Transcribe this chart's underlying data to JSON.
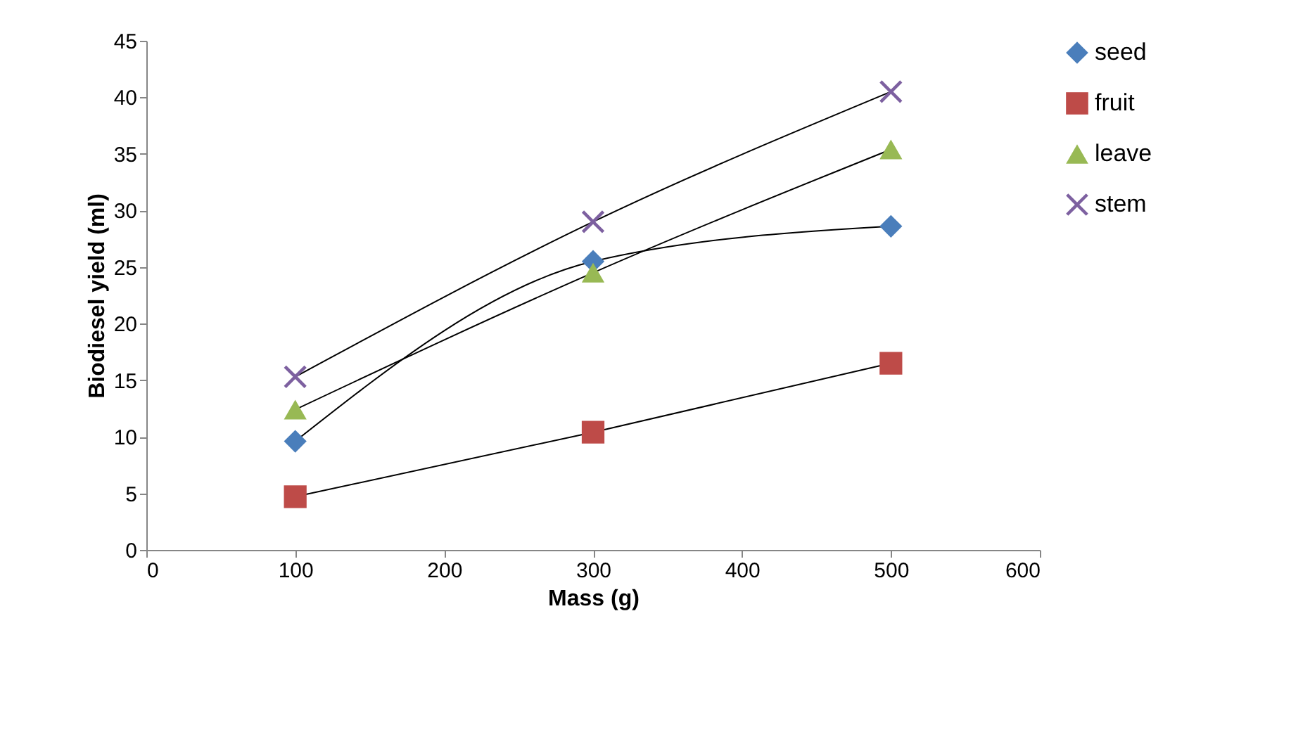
{
  "chart_data": {
    "type": "line",
    "xlabel": "Mass (g)",
    "ylabel": "Biodiesel yield (ml)",
    "x": [
      100,
      300,
      500
    ],
    "series": [
      {
        "name": "seed",
        "color": "#4a7ebb",
        "marker": "diamond",
        "values": [
          9.6,
          25.5,
          28.6
        ]
      },
      {
        "name": "fruit",
        "color": "#be4b48",
        "marker": "square",
        "values": [
          4.7,
          10.4,
          16.5
        ]
      },
      {
        "name": "leave",
        "color": "#98b954",
        "marker": "triangle",
        "values": [
          12.4,
          24.5,
          35.4
        ]
      },
      {
        "name": "stem",
        "color": "#7d60a0",
        "marker": "cross",
        "values": [
          15.3,
          29.0,
          40.5
        ]
      }
    ],
    "xlim": [
      0,
      600
    ],
    "xticks": [
      0,
      100,
      200,
      300,
      400,
      500,
      600
    ],
    "ylim": [
      0,
      45
    ],
    "yticks": [
      0,
      5,
      10,
      15,
      20,
      25,
      30,
      35,
      40,
      45
    ],
    "grid": false,
    "legend": "right"
  }
}
